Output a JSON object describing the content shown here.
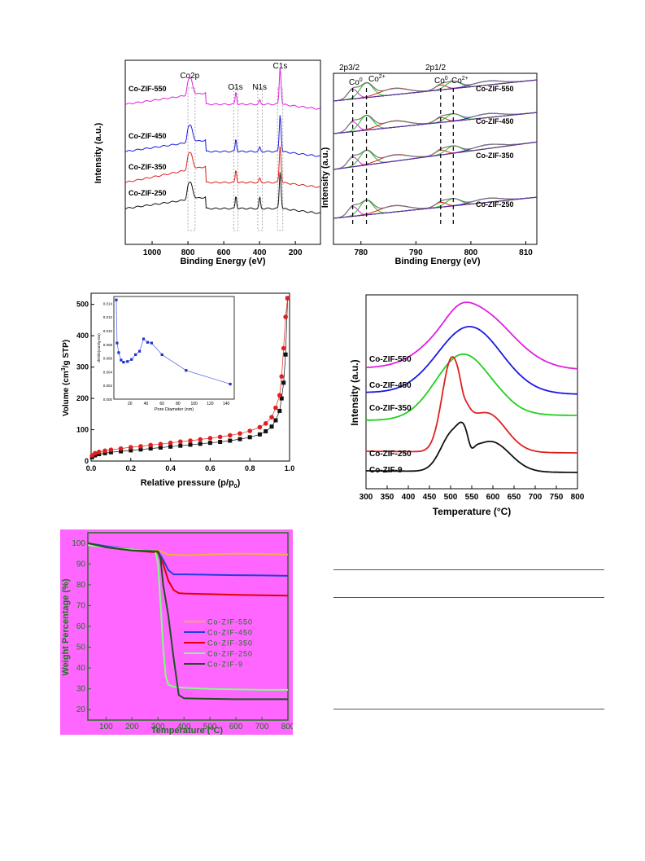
{
  "chart_data": [
    {
      "type": "line",
      "id": "xps_survey",
      "xlabel": "Binding Energy (eV)",
      "ylabel": "Intensity (a.u.)",
      "xlim": [
        1150,
        60
      ],
      "ticks_x": [
        1000,
        800,
        600,
        400,
        200
      ],
      "peak_labels": [
        "Co2p",
        "O1s",
        "N1s",
        "C1s"
      ],
      "peak_positions": [
        780,
        532,
        399,
        285
      ],
      "series": [
        {
          "name": "Co-ZIF-550",
          "color": "#e020e0"
        },
        {
          "name": "Co-ZIF-450",
          "color": "#1a1ae0"
        },
        {
          "name": "Co-ZIF-350",
          "color": "#e02020"
        },
        {
          "name": "Co-ZIF-250",
          "color": "#111111"
        }
      ]
    },
    {
      "type": "line",
      "id": "xps_co2p",
      "xlabel": "Binding Energy (eV)",
      "ylabel": "Intensity (a.u.)",
      "xlim": [
        775,
        812
      ],
      "ticks_x": [
        780,
        790,
        800,
        810
      ],
      "annotations": [
        "2p3/2",
        "Co",
        "0",
        "Co",
        "2+",
        "2p1/2",
        "Co",
        "0",
        "Co",
        "2+"
      ],
      "dashed_positions": [
        778.5,
        781.0,
        794.5,
        796.8
      ],
      "series": [
        {
          "name": "Co-ZIF-550"
        },
        {
          "name": "Co-ZIF-450"
        },
        {
          "name": "Co-ZIF-350"
        },
        {
          "name": "Co-ZIF-250"
        }
      ]
    },
    {
      "type": "scatter",
      "id": "n2_isotherm",
      "xlabel": "Relative pressure (p/p",
      "xlabel_sub": "0",
      "xlabel_end": ")",
      "ylabel": "Volume (cm",
      "ylabel_sup": "3",
      "ylabel_end": "/g STP)",
      "xlim": [
        0,
        1.0
      ],
      "ylim": [
        0,
        520
      ],
      "ticks_x": [
        0.0,
        0.2,
        0.4,
        0.6,
        0.8,
        1.0
      ],
      "ticks_y": [
        0,
        100,
        200,
        300,
        400,
        500
      ],
      "series": [
        {
          "marker": "square",
          "color": "#111111",
          "x": [
            0.005,
            0.02,
            0.04,
            0.07,
            0.1,
            0.15,
            0.2,
            0.25,
            0.3,
            0.35,
            0.4,
            0.45,
            0.5,
            0.55,
            0.6,
            0.65,
            0.7,
            0.75,
            0.8,
            0.85,
            0.88,
            0.91,
            0.93,
            0.95,
            0.96,
            0.97,
            0.98,
            0.99
          ],
          "y": [
            12,
            18,
            22,
            25,
            28,
            31,
            34,
            37,
            40,
            43,
            46,
            49,
            52,
            55,
            58,
            61,
            65,
            70,
            76,
            85,
            95,
            110,
            130,
            160,
            200,
            250,
            340,
            520
          ]
        },
        {
          "marker": "circle",
          "color": "#e02020",
          "x": [
            0.005,
            0.02,
            0.04,
            0.07,
            0.1,
            0.15,
            0.2,
            0.25,
            0.3,
            0.35,
            0.4,
            0.45,
            0.5,
            0.55,
            0.6,
            0.65,
            0.7,
            0.75,
            0.8,
            0.85,
            0.88,
            0.91,
            0.93,
            0.95,
            0.96,
            0.97,
            0.98,
            0.99
          ],
          "y": [
            18,
            25,
            29,
            33,
            36,
            40,
            44,
            47,
            51,
            54,
            58,
            62,
            65,
            69,
            73,
            77,
            82,
            88,
            96,
            108,
            120,
            140,
            170,
            210,
            270,
            360,
            460,
            520
          ]
        }
      ],
      "inset": {
        "xlabel": "Pore Diameter (nm)",
        "ylabel": "dV/dD(cm3/g-nm)",
        "xlim": [
          0,
          150
        ],
        "ylim": [
          0,
          0.015
        ],
        "ticks_x": [
          20,
          40,
          60,
          80,
          100,
          120,
          140
        ],
        "ticks_y": [
          0.0,
          0.002,
          0.004,
          0.006,
          0.008,
          0.01,
          0.012,
          0.014
        ],
        "x": [
          3,
          4,
          6,
          9,
          12,
          17,
          22,
          27,
          32,
          37,
          42,
          47,
          60,
          90,
          145
        ],
        "y": [
          0.0145,
          0.0082,
          0.0068,
          0.0057,
          0.0054,
          0.0055,
          0.0058,
          0.0065,
          0.007,
          0.0088,
          0.0083,
          0.0082,
          0.0065,
          0.0042,
          0.0022
        ]
      }
    },
    {
      "type": "line",
      "id": "h2_tpr",
      "xlabel": "Temperature (°C)",
      "ylabel": "Intensity (a.u.)",
      "xlim": [
        300,
        800
      ],
      "ticks_x": [
        300,
        350,
        400,
        450,
        500,
        550,
        600,
        650,
        700,
        750,
        800
      ],
      "series": [
        {
          "name": "Co-ZIF-550",
          "color": "#e020e0"
        },
        {
          "name": "Co-ZIF-450",
          "color": "#1a1ae0"
        },
        {
          "name": "Co-ZIF-350",
          "color": "#20d020"
        },
        {
          "name": "Co-ZIF-250",
          "color": "#e02020"
        },
        {
          "name": "Co-ZIF-9",
          "color": "#111111"
        }
      ]
    },
    {
      "type": "line",
      "id": "tga",
      "xlabel": "Temperature (ºC)",
      "ylabel": "Weight Percentage (%)",
      "xlim": [
        30,
        800
      ],
      "ylim": [
        15,
        105
      ],
      "ticks_x": [
        100,
        200,
        300,
        400,
        500,
        600,
        700,
        800
      ],
      "ticks_y": [
        20,
        30,
        40,
        50,
        60,
        70,
        80,
        90,
        100
      ],
      "series": [
        {
          "name": "Co-ZIF-550",
          "color": "#f0b040",
          "x": [
            30,
            100,
            200,
            300,
            340,
            400,
            500,
            600,
            700,
            800
          ],
          "y": [
            100,
            98.5,
            97,
            96.5,
            94.5,
            94.2,
            94.5,
            95,
            94.8,
            94.5
          ]
        },
        {
          "name": "Co-ZIF-450",
          "color": "#2040e0",
          "x": [
            30,
            100,
            200,
            300,
            320,
            340,
            360,
            400,
            500,
            600,
            700,
            800
          ],
          "y": [
            100,
            98.5,
            97,
            96,
            92,
            87,
            85,
            85,
            84.8,
            84.6,
            84.5,
            84.3
          ]
        },
        {
          "name": "Co-ZIF-350",
          "color": "#e00000",
          "x": [
            30,
            100,
            200,
            300,
            320,
            340,
            360,
            380,
            400,
            500,
            600,
            700,
            800
          ],
          "y": [
            100,
            98,
            96.5,
            95.5,
            90,
            82,
            77.5,
            76,
            75.8,
            75.5,
            75.2,
            75,
            74.8
          ]
        },
        {
          "name": "Co-ZIF-250",
          "color": "#80ff80",
          "x": [
            30,
            100,
            200,
            290,
            300,
            310,
            320,
            330,
            340,
            360,
            400,
            500,
            600,
            700,
            800
          ],
          "y": [
            99,
            98,
            97,
            96,
            90,
            70,
            50,
            36,
            32,
            31,
            30.5,
            30,
            29.8,
            29.5,
            29.5
          ]
        },
        {
          "name": "Co-ZIF-9",
          "color": "#205020",
          "x": [
            30,
            100,
            200,
            300,
            310,
            320,
            340,
            360,
            380,
            400,
            500,
            600,
            700,
            800
          ],
          "y": [
            100,
            98,
            96.5,
            96,
            92,
            80,
            65,
            45,
            27,
            25.5,
            25.2,
            25,
            25,
            25
          ]
        }
      ]
    }
  ]
}
